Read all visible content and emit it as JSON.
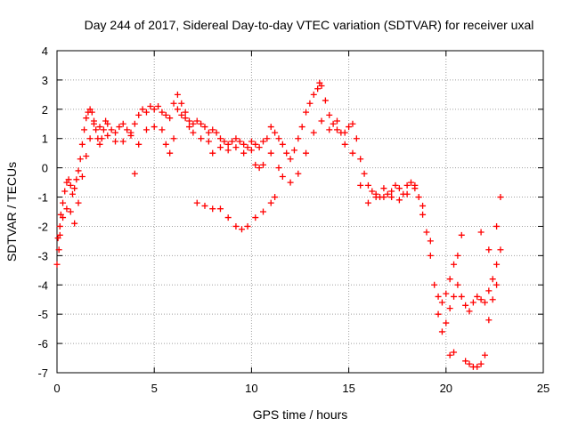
{
  "chart_data": {
    "type": "scatter",
    "title": "Day 244 of 2017, Sidereal Day-to-day VTEC variation (SDTVAR) for receiver uxal",
    "xlabel": "GPS time / hours",
    "ylabel": "SDTVAR / TECUs",
    "xlim": [
      0,
      25
    ],
    "ylim": [
      -7,
      4
    ],
    "xticks": [
      0,
      5,
      10,
      15,
      20,
      25
    ],
    "yticks": [
      -7,
      -6,
      -5,
      -4,
      -3,
      -2,
      -1,
      0,
      1,
      2,
      3,
      4
    ],
    "grid": true,
    "marker": "+",
    "color": "#ff0000",
    "series": [
      {
        "points": [
          [
            0.0,
            -3.3
          ],
          [
            0.1,
            -2.8
          ],
          [
            0.15,
            -2.3
          ],
          [
            0.2,
            -1.6
          ],
          [
            0.3,
            -1.2
          ],
          [
            0.4,
            -0.8
          ],
          [
            0.5,
            -0.5
          ],
          [
            0.6,
            -0.4
          ],
          [
            0.7,
            -0.6
          ],
          [
            0.8,
            -0.9
          ],
          [
            0.9,
            -0.7
          ],
          [
            1.0,
            -0.4
          ],
          [
            1.1,
            -0.1
          ],
          [
            1.2,
            0.3
          ],
          [
            1.3,
            0.8
          ],
          [
            1.4,
            1.3
          ],
          [
            1.5,
            1.7
          ],
          [
            1.6,
            1.9
          ],
          [
            1.7,
            2.0
          ],
          [
            1.8,
            1.9
          ],
          [
            1.9,
            1.6
          ],
          [
            2.0,
            1.3
          ],
          [
            2.1,
            1.0
          ],
          [
            2.2,
            0.8
          ],
          [
            2.3,
            1.0
          ],
          [
            2.4,
            1.3
          ],
          [
            2.5,
            1.6
          ],
          [
            2.6,
            1.5
          ],
          [
            2.8,
            1.3
          ],
          [
            3.0,
            1.2
          ],
          [
            3.2,
            1.4
          ],
          [
            3.4,
            1.5
          ],
          [
            3.6,
            1.3
          ],
          [
            3.8,
            1.2
          ],
          [
            4.0,
            1.5
          ],
          [
            4.2,
            1.8
          ],
          [
            4.4,
            2.0
          ],
          [
            4.6,
            1.9
          ],
          [
            4.8,
            2.1
          ],
          [
            5.0,
            2.0
          ],
          [
            5.2,
            2.1
          ],
          [
            5.4,
            1.9
          ],
          [
            5.6,
            1.8
          ],
          [
            5.8,
            1.7
          ],
          [
            6.0,
            2.2
          ],
          [
            6.2,
            2.0
          ],
          [
            6.4,
            1.8
          ],
          [
            6.6,
            1.7
          ],
          [
            6.8,
            1.6
          ],
          [
            7.0,
            1.5
          ],
          [
            7.2,
            1.6
          ],
          [
            7.4,
            1.5
          ],
          [
            7.6,
            1.4
          ],
          [
            7.8,
            1.2
          ],
          [
            8.0,
            1.3
          ],
          [
            8.2,
            1.2
          ],
          [
            8.4,
            1.0
          ],
          [
            8.6,
            0.9
          ],
          [
            8.8,
            0.8
          ],
          [
            9.0,
            0.9
          ],
          [
            9.2,
            1.0
          ],
          [
            9.4,
            0.9
          ],
          [
            9.6,
            0.8
          ],
          [
            9.8,
            0.7
          ],
          [
            10.0,
            0.9
          ],
          [
            10.2,
            0.8
          ],
          [
            10.4,
            0.7
          ],
          [
            10.6,
            0.9
          ],
          [
            10.8,
            1.0
          ],
          [
            11.0,
            1.4
          ],
          [
            11.2,
            1.2
          ],
          [
            11.4,
            1.0
          ],
          [
            11.6,
            0.8
          ],
          [
            11.8,
            0.5
          ],
          [
            12.0,
            0.3
          ],
          [
            12.2,
            0.6
          ],
          [
            12.4,
            1.0
          ],
          [
            12.6,
            1.4
          ],
          [
            12.8,
            1.9
          ],
          [
            13.0,
            2.2
          ],
          [
            13.2,
            2.5
          ],
          [
            13.4,
            2.7
          ],
          [
            13.5,
            2.9
          ],
          [
            13.6,
            2.8
          ],
          [
            13.8,
            2.3
          ],
          [
            14.0,
            1.8
          ],
          [
            14.2,
            1.5
          ],
          [
            14.4,
            1.3
          ],
          [
            14.6,
            1.2
          ],
          [
            14.8,
            1.2
          ],
          [
            15.0,
            1.4
          ],
          [
            15.2,
            1.5
          ],
          [
            15.4,
            1.0
          ],
          [
            15.6,
            0.3
          ],
          [
            15.8,
            -0.2
          ],
          [
            16.0,
            -0.6
          ],
          [
            16.2,
            -0.8
          ],
          [
            16.4,
            -0.9
          ],
          [
            16.6,
            -1.0
          ],
          [
            16.8,
            -1.0
          ],
          [
            17.0,
            -0.9
          ],
          [
            17.2,
            -0.8
          ],
          [
            17.4,
            -0.6
          ],
          [
            17.6,
            -0.7
          ],
          [
            17.8,
            -0.9
          ],
          [
            18.0,
            -0.6
          ],
          [
            18.2,
            -0.5
          ],
          [
            18.4,
            -0.6
          ],
          [
            18.6,
            -1.0
          ],
          [
            18.8,
            -1.6
          ],
          [
            19.0,
            -2.2
          ],
          [
            19.2,
            -3.0
          ],
          [
            19.4,
            -4.0
          ],
          [
            19.6,
            -4.4
          ],
          [
            19.8,
            -4.6
          ],
          [
            20.0,
            -4.3
          ],
          [
            20.2,
            -3.8
          ],
          [
            20.4,
            -3.3
          ],
          [
            20.6,
            -4.0
          ],
          [
            20.8,
            -4.4
          ],
          [
            21.0,
            -4.7
          ],
          [
            21.2,
            -4.9
          ],
          [
            21.4,
            -4.6
          ],
          [
            21.6,
            -4.4
          ],
          [
            21.8,
            -4.5
          ],
          [
            22.0,
            -4.6
          ],
          [
            22.2,
            -4.2
          ],
          [
            22.4,
            -3.8
          ],
          [
            22.6,
            -3.3
          ],
          [
            22.8,
            -2.8
          ],
          [
            0.05,
            -2.4
          ],
          [
            0.15,
            -2.0
          ],
          [
            0.3,
            -1.7
          ],
          [
            0.5,
            -1.4
          ],
          [
            0.7,
            -1.5
          ],
          [
            0.9,
            -1.9
          ],
          [
            1.1,
            -1.2
          ],
          [
            1.3,
            -0.3
          ],
          [
            1.5,
            0.4
          ],
          [
            1.7,
            1.0
          ],
          [
            1.9,
            1.5
          ],
          [
            2.2,
            1.4
          ],
          [
            2.6,
            1.1
          ],
          [
            3.0,
            0.9
          ],
          [
            3.4,
            0.9
          ],
          [
            3.8,
            1.1
          ],
          [
            4.0,
            -0.2
          ],
          [
            4.2,
            0.8
          ],
          [
            4.6,
            1.3
          ],
          [
            5.0,
            1.4
          ],
          [
            5.4,
            1.3
          ],
          [
            5.6,
            0.8
          ],
          [
            5.8,
            0.5
          ],
          [
            6.0,
            1.0
          ],
          [
            6.2,
            2.5
          ],
          [
            6.4,
            2.2
          ],
          [
            6.6,
            1.9
          ],
          [
            6.8,
            1.4
          ],
          [
            7.0,
            1.2
          ],
          [
            7.4,
            1.0
          ],
          [
            7.8,
            0.9
          ],
          [
            8.0,
            0.5
          ],
          [
            8.4,
            0.7
          ],
          [
            8.8,
            0.6
          ],
          [
            9.2,
            0.7
          ],
          [
            9.6,
            0.5
          ],
          [
            10.0,
            0.6
          ],
          [
            10.2,
            0.1
          ],
          [
            10.4,
            0.0
          ],
          [
            10.6,
            0.1
          ],
          [
            11.0,
            0.5
          ],
          [
            11.4,
            0.0
          ],
          [
            11.6,
            -0.3
          ],
          [
            12.0,
            -0.5
          ],
          [
            12.4,
            -0.2
          ],
          [
            12.8,
            0.5
          ],
          [
            13.2,
            1.2
          ],
          [
            13.6,
            1.6
          ],
          [
            14.0,
            1.3
          ],
          [
            14.4,
            1.6
          ],
          [
            14.8,
            0.8
          ],
          [
            15.2,
            0.5
          ],
          [
            15.6,
            -0.6
          ],
          [
            16.0,
            -1.2
          ],
          [
            16.4,
            -1.0
          ],
          [
            16.8,
            -0.7
          ],
          [
            17.2,
            -1.0
          ],
          [
            17.6,
            -1.1
          ],
          [
            18.0,
            -0.9
          ],
          [
            18.4,
            -0.7
          ],
          [
            18.8,
            -1.3
          ],
          [
            19.2,
            -2.5
          ],
          [
            19.6,
            -5.0
          ],
          [
            19.8,
            -5.6
          ],
          [
            20.0,
            -5.3
          ],
          [
            20.2,
            -4.8
          ],
          [
            20.4,
            -4.4
          ],
          [
            20.6,
            -3.0
          ],
          [
            20.8,
            -2.3
          ],
          [
            21.0,
            -6.6
          ],
          [
            21.2,
            -6.7
          ],
          [
            21.4,
            -6.8
          ],
          [
            21.6,
            -6.8
          ],
          [
            21.8,
            -6.7
          ],
          [
            22.0,
            -6.4
          ],
          [
            22.2,
            -5.2
          ],
          [
            22.4,
            -4.5
          ],
          [
            22.6,
            -4.0
          ],
          [
            22.8,
            -1.0
          ],
          [
            20.2,
            -6.4
          ],
          [
            20.4,
            -6.3
          ],
          [
            21.8,
            -2.2
          ],
          [
            22.2,
            -2.8
          ],
          [
            22.6,
            -2.0
          ],
          [
            7.2,
            -1.2
          ],
          [
            7.6,
            -1.3
          ],
          [
            8.0,
            -1.4
          ],
          [
            8.4,
            -1.4
          ],
          [
            8.8,
            -1.7
          ],
          [
            9.2,
            -2.0
          ],
          [
            9.5,
            -2.1
          ],
          [
            9.8,
            -2.0
          ],
          [
            10.2,
            -1.7
          ],
          [
            10.6,
            -1.5
          ],
          [
            11.0,
            -1.2
          ],
          [
            11.2,
            -1.0
          ]
        ]
      }
    ]
  }
}
